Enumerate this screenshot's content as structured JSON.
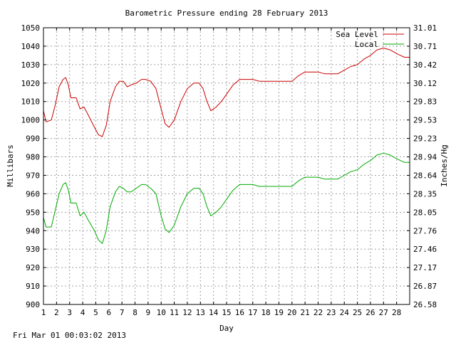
{
  "chart_data": {
    "type": "line",
    "title": "Barometric Pressure ending 28 February 2013",
    "xlabel": "Day",
    "ylabel_left": "Millibars",
    "ylabel_right": "Inches/Hg",
    "timestamp": "Fri Mar 01 00:03:02 2013",
    "xlim": [
      1,
      29
    ],
    "ylim": [
      900,
      1050
    ],
    "grid": true,
    "legend_position": "top-right",
    "x_ticks": [
      "1",
      "2",
      "3",
      "4",
      "5",
      "6",
      "7",
      "8",
      "9",
      "10",
      "11",
      "12",
      "13",
      "14",
      "15",
      "16",
      "17",
      "18",
      "19",
      "20",
      "21",
      "22",
      "23",
      "24",
      "25",
      "26",
      "27",
      "28"
    ],
    "y_ticks_left": [
      "900",
      "910",
      "920",
      "930",
      "940",
      "950",
      "960",
      "970",
      "980",
      "990",
      "1000",
      "1010",
      "1020",
      "1030",
      "1040",
      "1050"
    ],
    "y_ticks_right": [
      "26.58",
      "26.87",
      "27.17",
      "27.46",
      "27.76",
      "28.05",
      "28.35",
      "28.64",
      "28.94",
      "29.23",
      "29.53",
      "29.83",
      "30.12",
      "30.42",
      "30.71",
      "31.01"
    ],
    "series": [
      {
        "name": "Sea Level",
        "color": "#cc0000",
        "points": [
          [
            1,
            1005
          ],
          [
            1.2,
            999
          ],
          [
            1.6,
            1000
          ],
          [
            1.9,
            1008
          ],
          [
            2.2,
            1018
          ],
          [
            2.5,
            1022
          ],
          [
            2.7,
            1023
          ],
          [
            2.9,
            1019
          ],
          [
            3.1,
            1012
          ],
          [
            3.5,
            1012
          ],
          [
            3.8,
            1006
          ],
          [
            4.1,
            1007
          ],
          [
            4.4,
            1003
          ],
          [
            4.9,
            996
          ],
          [
            5.2,
            992
          ],
          [
            5.5,
            991
          ],
          [
            5.8,
            997
          ],
          [
            6.1,
            1010
          ],
          [
            6.5,
            1018
          ],
          [
            6.8,
            1021
          ],
          [
            7.1,
            1021
          ],
          [
            7.4,
            1018
          ],
          [
            7.7,
            1019
          ],
          [
            8.1,
            1020
          ],
          [
            8.5,
            1022
          ],
          [
            8.8,
            1022
          ],
          [
            9.2,
            1021
          ],
          [
            9.6,
            1017
          ],
          [
            10,
            1006
          ],
          [
            10.3,
            998
          ],
          [
            10.6,
            996
          ],
          [
            11,
            1000
          ],
          [
            11.5,
            1010
          ],
          [
            12,
            1017
          ],
          [
            12.5,
            1020
          ],
          [
            12.9,
            1020
          ],
          [
            13.2,
            1017
          ],
          [
            13.5,
            1010
          ],
          [
            13.8,
            1005
          ],
          [
            14.2,
            1007
          ],
          [
            14.6,
            1010
          ],
          [
            15,
            1014
          ],
          [
            15.5,
            1019
          ],
          [
            16,
            1022
          ],
          [
            16.5,
            1022
          ],
          [
            17,
            1022
          ],
          [
            17.5,
            1021
          ],
          [
            18,
            1021
          ],
          [
            18.5,
            1021
          ],
          [
            19,
            1021
          ],
          [
            19.5,
            1021
          ],
          [
            20,
            1021
          ],
          [
            20.5,
            1024
          ],
          [
            21,
            1026
          ],
          [
            21.5,
            1026
          ],
          [
            22,
            1026
          ],
          [
            22.5,
            1025
          ],
          [
            23,
            1025
          ],
          [
            23.5,
            1025
          ],
          [
            24,
            1027
          ],
          [
            24.5,
            1029
          ],
          [
            25,
            1030
          ],
          [
            25.5,
            1033
          ],
          [
            26,
            1035
          ],
          [
            26.5,
            1038
          ],
          [
            27,
            1039
          ],
          [
            27.5,
            1038
          ],
          [
            28,
            1036
          ],
          [
            28.3,
            1035
          ],
          [
            28.6,
            1034
          ],
          [
            29,
            1034
          ]
        ]
      },
      {
        "name": "Local",
        "color": "#00aa00",
        "points": [
          [
            1,
            947
          ],
          [
            1.2,
            942
          ],
          [
            1.6,
            942
          ],
          [
            1.9,
            951
          ],
          [
            2.2,
            960
          ],
          [
            2.5,
            965
          ],
          [
            2.7,
            966
          ],
          [
            2.9,
            962
          ],
          [
            3.1,
            955
          ],
          [
            3.5,
            955
          ],
          [
            3.8,
            948
          ],
          [
            4.1,
            950
          ],
          [
            4.4,
            946
          ],
          [
            4.9,
            940
          ],
          [
            5.2,
            935
          ],
          [
            5.5,
            933
          ],
          [
            5.8,
            940
          ],
          [
            6.1,
            953
          ],
          [
            6.5,
            961
          ],
          [
            6.8,
            964
          ],
          [
            7.1,
            963
          ],
          [
            7.4,
            961
          ],
          [
            7.7,
            961
          ],
          [
            8.1,
            963
          ],
          [
            8.5,
            965
          ],
          [
            8.8,
            965
          ],
          [
            9.2,
            963
          ],
          [
            9.6,
            960
          ],
          [
            10,
            948
          ],
          [
            10.3,
            941
          ],
          [
            10.6,
            939
          ],
          [
            11,
            943
          ],
          [
            11.5,
            953
          ],
          [
            12,
            960
          ],
          [
            12.5,
            963
          ],
          [
            12.9,
            963
          ],
          [
            13.2,
            960
          ],
          [
            13.5,
            953
          ],
          [
            13.8,
            948
          ],
          [
            14.2,
            950
          ],
          [
            14.6,
            953
          ],
          [
            15,
            957
          ],
          [
            15.5,
            962
          ],
          [
            16,
            965
          ],
          [
            16.5,
            965
          ],
          [
            17,
            965
          ],
          [
            17.5,
            964
          ],
          [
            18,
            964
          ],
          [
            18.5,
            964
          ],
          [
            19,
            964
          ],
          [
            19.5,
            964
          ],
          [
            20,
            964
          ],
          [
            20.5,
            967
          ],
          [
            21,
            969
          ],
          [
            21.5,
            969
          ],
          [
            22,
            969
          ],
          [
            22.5,
            968
          ],
          [
            23,
            968
          ],
          [
            23.5,
            968
          ],
          [
            24,
            970
          ],
          [
            24.5,
            972
          ],
          [
            25,
            973
          ],
          [
            25.5,
            976
          ],
          [
            26,
            978
          ],
          [
            26.5,
            981
          ],
          [
            27,
            982
          ],
          [
            27.5,
            981
          ],
          [
            28,
            979
          ],
          [
            28.3,
            978
          ],
          [
            28.6,
            977
          ],
          [
            29,
            977
          ]
        ]
      }
    ]
  }
}
